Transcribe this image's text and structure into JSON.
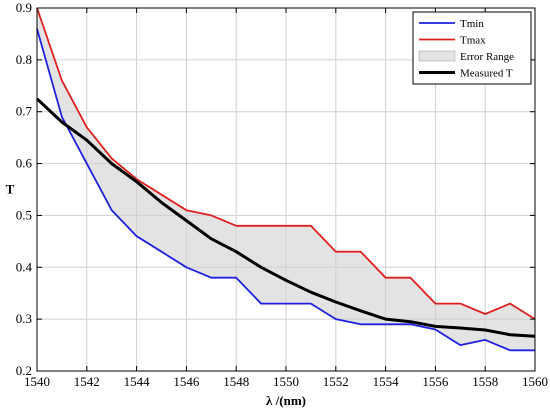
{
  "chart_data": {
    "type": "line",
    "title": "",
    "xlabel": "λ /(nm)",
    "ylabel": "T",
    "xlim": [
      1540,
      1560
    ],
    "ylim": [
      0.2,
      0.9
    ],
    "xticks": [
      1540,
      1542,
      1544,
      1546,
      1548,
      1550,
      1552,
      1554,
      1556,
      1558,
      1560
    ],
    "yticks": [
      0.2,
      0.3,
      0.4,
      0.5,
      0.6,
      0.7,
      0.8,
      0.9
    ],
    "grid": true,
    "legend_position": "top-right",
    "x": [
      1540,
      1541,
      1542,
      1543,
      1544,
      1545,
      1546,
      1547,
      1548,
      1549,
      1550,
      1551,
      1552,
      1553,
      1554,
      1555,
      1556,
      1557,
      1558,
      1559,
      1560
    ],
    "series": [
      {
        "name": "Tmin",
        "color": "#2020e0",
        "values": [
          0.86,
          0.69,
          0.6,
          0.51,
          0.46,
          0.43,
          0.4,
          0.38,
          0.38,
          0.33,
          0.33,
          0.33,
          0.3,
          0.29,
          0.29,
          0.29,
          0.28,
          0.25,
          0.26,
          0.24,
          0.24
        ]
      },
      {
        "name": "Tmax",
        "color": "#e02020",
        "values": [
          0.9,
          0.76,
          0.67,
          0.61,
          0.57,
          0.54,
          0.51,
          0.5,
          0.48,
          0.48,
          0.48,
          0.48,
          0.43,
          0.43,
          0.38,
          0.38,
          0.33,
          0.33,
          0.31,
          0.33,
          0.3
        ]
      },
      {
        "name": "Error Range",
        "type": "area",
        "color": "#e3e3e3",
        "between": [
          "Tmin",
          "Tmax"
        ]
      },
      {
        "name": "Measured T",
        "color": "#000000",
        "values": [
          0.725,
          0.68,
          0.645,
          0.6,
          0.565,
          0.525,
          0.49,
          0.455,
          0.43,
          0.4,
          0.375,
          0.352,
          0.333,
          0.316,
          0.3,
          0.295,
          0.286,
          0.283,
          0.279,
          0.27,
          0.267
        ]
      }
    ]
  }
}
